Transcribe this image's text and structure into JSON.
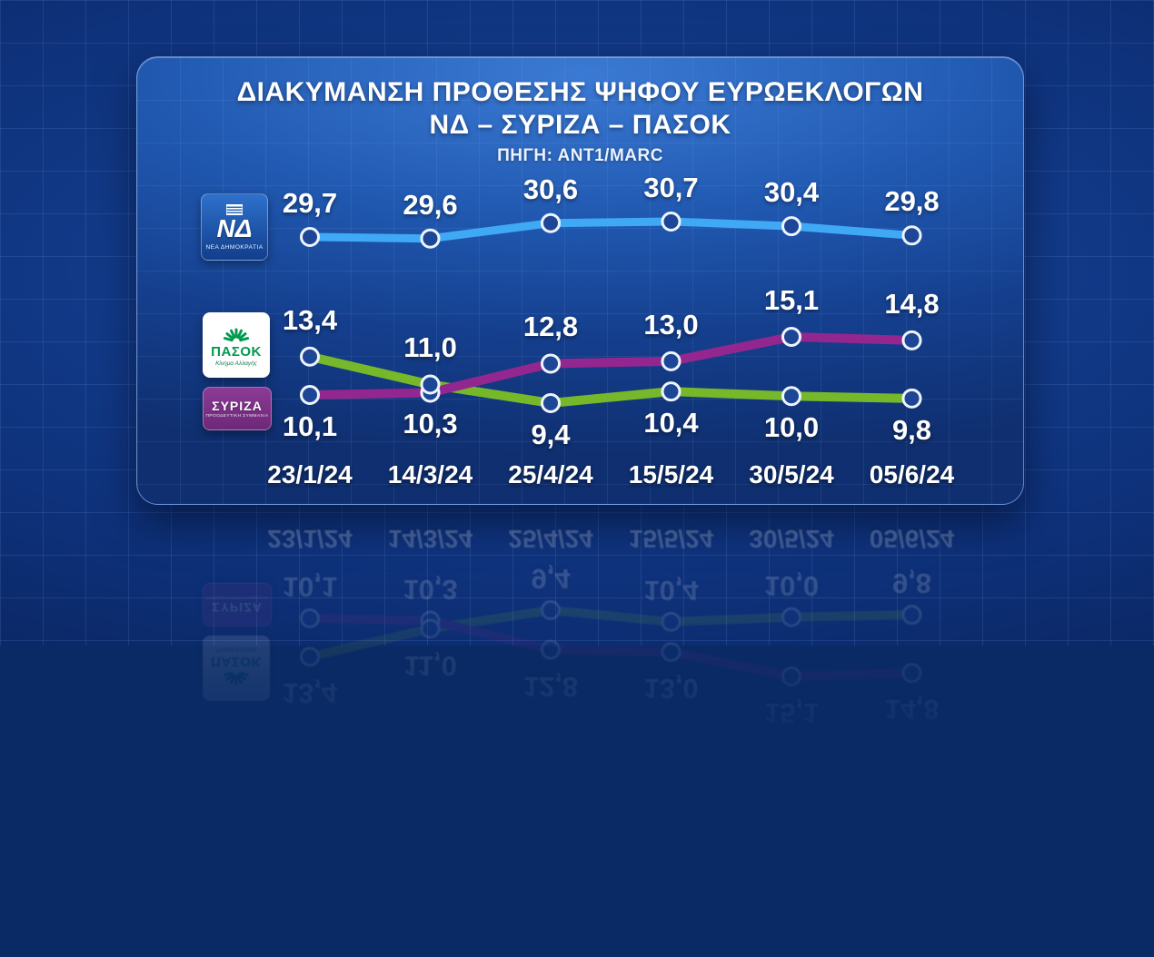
{
  "title": {
    "line1": "ΔΙΑΚΥΜΑΝΣΗ ΠΡΟΘΕΣΗΣ ΨΗΦΟΥ ΕΥΡΩΕΚΛΟΓΩΝ",
    "line2": "ΝΔ – ΣΥΡΙΖΑ – ΠΑΣΟΚ",
    "source": "ΠΗΓΗ: ΑΝΤ1/MARC"
  },
  "chart_data": {
    "type": "line",
    "title": "ΔΙΑΚΥΜΑΝΣΗ ΠΡΟΘΕΣΗΣ ΨΗΦΟΥ ΕΥΡΩΕΚΛΟΓΩΝ ΝΔ – ΣΥΡΙΖΑ – ΠΑΣΟΚ",
    "source": "ΠΗΓΗ: ΑΝΤ1/MARC",
    "categories": [
      "23/1/24",
      "14/3/24",
      "25/4/24",
      "15/5/24",
      "30/5/24",
      "05/6/24"
    ],
    "series": [
      {
        "id": "nd",
        "name": "ΝΔ",
        "color": "#3fa9f5",
        "values": [
          29.7,
          29.6,
          30.6,
          30.7,
          30.4,
          29.8
        ],
        "labels": [
          "29,7",
          "29,6",
          "30,6",
          "30,7",
          "30,4",
          "29,8"
        ]
      },
      {
        "id": "syriza",
        "name": "ΣΥΡΙΖΑ",
        "color": "#93278f",
        "values": [
          10.1,
          10.3,
          12.8,
          13.0,
          15.1,
          14.8
        ],
        "labels": [
          "10,1",
          "10,3",
          "12,8",
          "13,0",
          "15,1",
          "14,8"
        ]
      },
      {
        "id": "pasok",
        "name": "ΠΑΣΟΚ",
        "color": "#76b82a",
        "values": [
          13.4,
          11.0,
          9.4,
          10.4,
          10.0,
          9.8
        ],
        "labels": [
          "13,4",
          "11,0",
          "9,4",
          "10,4",
          "10,0",
          "9,8"
        ]
      }
    ],
    "grid": true,
    "legend_position": "left",
    "decimal_separator": ",",
    "axis_note": "broken scale: ΝΔ plotted on upper band, ΣΥΡΙΖΑ/ΠΑΣΟΚ on lower band"
  },
  "logos": {
    "nd": {
      "monogram": "ΝΔ",
      "caption": "ΝΕΑ ΔΗΜΟΚΡΑΤΙΑ"
    },
    "pasok": {
      "name": "ΠΑΣΟΚ",
      "caption": "Κίνημα Αλλαγής"
    },
    "syriza": {
      "name": "ΣΥΡΙΖΑ",
      "caption": "ΠΡΟΟΔΕΥΤΙΚΗ ΣΥΜΜΑΧΙΑ"
    }
  }
}
